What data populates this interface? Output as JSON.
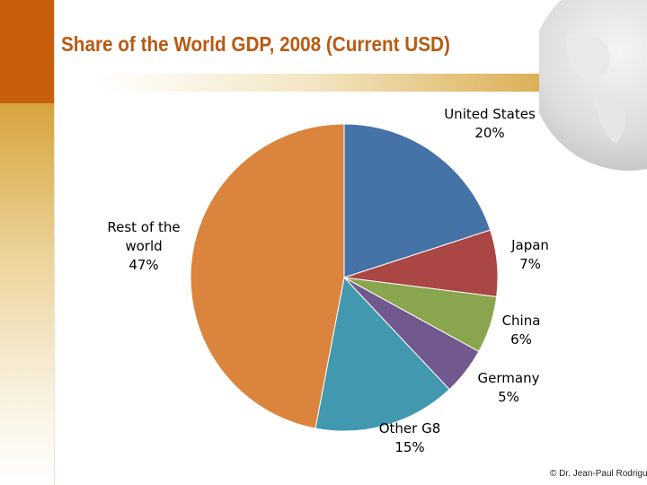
{
  "slide": {
    "title": "Share of the World GDP, 2008 (Current USD)",
    "copyright": "© Dr. Jean-Paul Rodrigue"
  },
  "chart_data": {
    "type": "pie",
    "title": "Share of the World GDP, 2008 (Current USD)",
    "slices": [
      {
        "label_lines": [
          "United States",
          "20%"
        ],
        "value": 20,
        "color": "#4572a7"
      },
      {
        "label_lines": [
          "Japan",
          "7%"
        ],
        "value": 7,
        "color": "#aa4643"
      },
      {
        "label_lines": [
          "China",
          "6%"
        ],
        "value": 6,
        "color": "#89a54e"
      },
      {
        "label_lines": [
          "Germany",
          "5%"
        ],
        "value": 5,
        "color": "#71588f"
      },
      {
        "label_lines": [
          "Other G8",
          "15%"
        ],
        "value": 15,
        "color": "#4198af"
      },
      {
        "label_lines": [
          "Rest of the",
          "world",
          "47%"
        ],
        "value": 47,
        "color": "#db843d"
      }
    ],
    "start": "12 o'clock",
    "direction": "clockwise",
    "legend": "none"
  }
}
